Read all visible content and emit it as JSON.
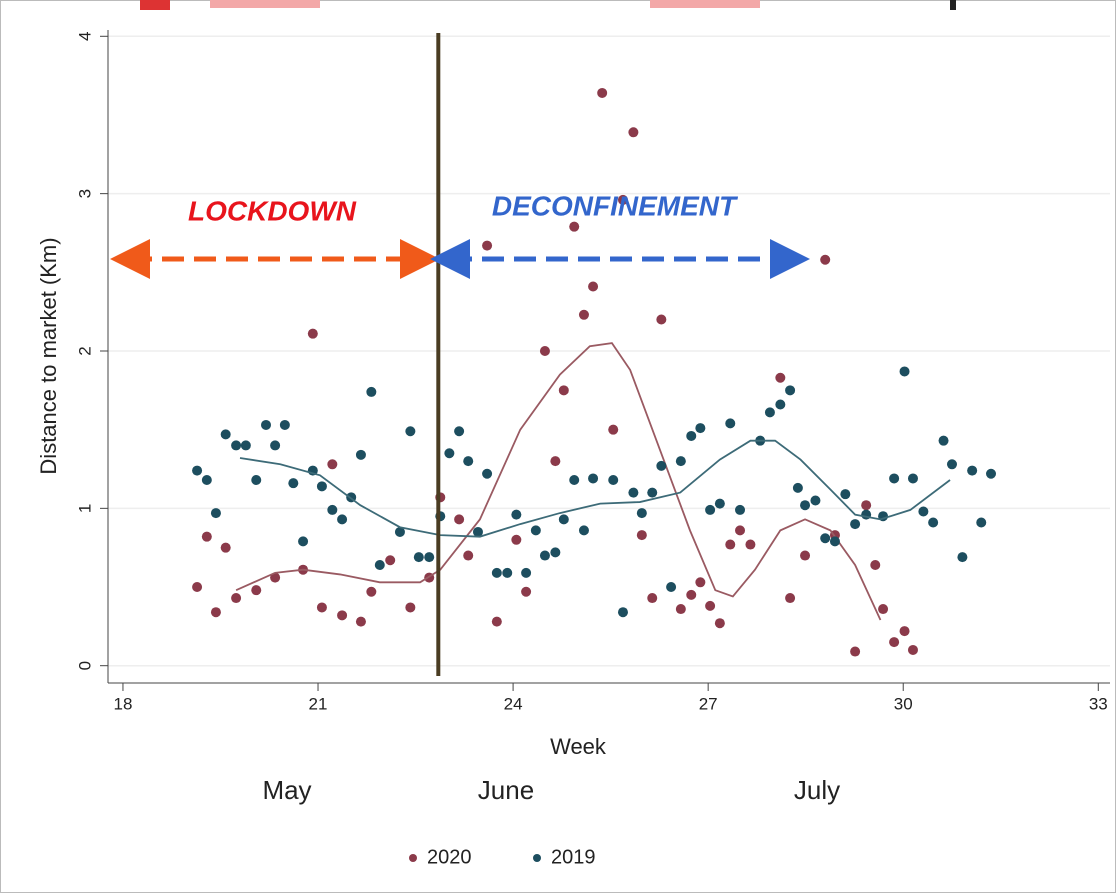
{
  "chart_data": {
    "type": "scatter",
    "xlabel": "Week",
    "ylabel": "Distance to market (Km)",
    "xlim": [
      17.77,
      33.18
    ],
    "ylim": [
      -0.11,
      4.04
    ],
    "xticks": [
      18,
      21,
      24,
      27,
      30,
      33
    ],
    "yticks": [
      0,
      1,
      2,
      3,
      4
    ],
    "grid": true,
    "months": [
      "May",
      "June",
      "July"
    ],
    "annotations": [
      "LOCKDOWN",
      "DECONFINEMENT"
    ],
    "vline": 22.85,
    "series": [
      {
        "name": "2020",
        "color": "#8b3a4a",
        "x": [
          19.14,
          19.29,
          19.43,
          19.58,
          19.74,
          20.05,
          20.34,
          20.92,
          20.77,
          21.06,
          21.22,
          21.37,
          21.66,
          21.82,
          22.11,
          22.42,
          22.71,
          22.88,
          23.17,
          23.31,
          23.6,
          23.75,
          24.05,
          24.2,
          24.49,
          24.65,
          24.78,
          24.94,
          25.09,
          25.23,
          25.37,
          25.54,
          25.69,
          25.85,
          25.98,
          26.14,
          26.28,
          26.58,
          26.74,
          26.88,
          27.03,
          27.18,
          27.34,
          27.49,
          27.65,
          28.11,
          28.26,
          28.49,
          28.8,
          28.95,
          29.26,
          29.43,
          29.57,
          29.69,
          29.86,
          30.02,
          30.15
        ],
        "values": [
          0.5,
          0.82,
          0.34,
          0.75,
          0.43,
          0.48,
          0.56,
          2.11,
          0.61,
          0.37,
          1.28,
          0.32,
          0.28,
          0.47,
          0.67,
          0.37,
          0.56,
          1.07,
          0.93,
          0.7,
          2.67,
          0.28,
          0.8,
          0.47,
          2.0,
          1.3,
          1.75,
          2.79,
          2.23,
          2.41,
          3.64,
          1.5,
          2.96,
          3.39,
          0.83,
          0.43,
          2.2,
          0.36,
          0.45,
          0.53,
          0.38,
          0.27,
          0.77,
          0.86,
          0.77,
          1.83,
          0.43,
          0.7,
          2.58,
          0.83,
          0.09,
          1.02,
          0.64,
          0.36,
          0.15,
          0.22,
          0.1
        ],
        "fit_x": [
          19.74,
          20.34,
          20.77,
          21.34,
          21.95,
          22.57,
          22.88,
          23.49,
          24.11,
          24.72,
          25.18,
          25.52,
          25.8,
          26.26,
          26.72,
          27.11,
          27.38,
          27.72,
          28.11,
          28.49,
          28.88,
          29.26,
          29.65
        ],
        "fit_values": [
          0.48,
          0.59,
          0.61,
          0.58,
          0.53,
          0.53,
          0.61,
          0.93,
          1.5,
          1.85,
          2.03,
          2.05,
          1.88,
          1.37,
          0.86,
          0.48,
          0.44,
          0.61,
          0.86,
          0.93,
          0.86,
          0.64,
          0.29
        ],
        "fit_color": "#9a5a62"
      },
      {
        "name": "2019",
        "color": "#1d4e5f",
        "x": [
          19.14,
          19.29,
          19.43,
          19.58,
          19.74,
          19.89,
          20.05,
          20.2,
          20.34,
          20.49,
          20.62,
          20.77,
          20.92,
          21.06,
          21.22,
          21.37,
          21.51,
          21.66,
          21.82,
          21.95,
          22.26,
          22.42,
          22.55,
          22.71,
          22.88,
          23.02,
          23.17,
          23.31,
          23.46,
          23.6,
          23.75,
          23.91,
          24.05,
          24.2,
          24.35,
          24.49,
          24.65,
          24.78,
          24.94,
          25.09,
          25.23,
          25.54,
          25.69,
          25.85,
          25.98,
          26.14,
          26.28,
          26.43,
          26.58,
          26.74,
          26.88,
          27.03,
          27.18,
          27.34,
          27.49,
          27.8,
          27.95,
          28.11,
          28.26,
          28.38,
          28.49,
          28.65,
          28.8,
          28.95,
          29.11,
          29.26,
          29.43,
          29.69,
          29.86,
          30.02,
          30.15,
          30.31,
          30.46,
          30.62,
          30.75,
          30.91,
          31.06,
          31.2,
          31.35
        ],
        "values": [
          1.24,
          1.18,
          0.97,
          1.47,
          1.4,
          1.4,
          1.18,
          1.53,
          1.4,
          1.53,
          1.16,
          0.79,
          1.24,
          1.14,
          0.99,
          0.93,
          1.07,
          1.34,
          1.74,
          0.64,
          0.85,
          1.49,
          0.69,
          0.69,
          0.95,
          1.35,
          1.49,
          1.3,
          0.85,
          1.22,
          0.59,
          0.59,
          0.96,
          0.59,
          0.86,
          0.7,
          0.72,
          0.93,
          1.18,
          0.86,
          1.19,
          1.18,
          0.34,
          1.1,
          0.97,
          1.1,
          1.27,
          0.5,
          1.3,
          1.46,
          1.51,
          0.99,
          1.03,
          1.54,
          0.99,
          1.43,
          1.61,
          1.66,
          1.75,
          1.13,
          1.02,
          1.05,
          0.81,
          0.79,
          1.09,
          0.9,
          0.96,
          0.95,
          1.19,
          1.87,
          1.19,
          0.98,
          0.91,
          1.43,
          1.28,
          0.69,
          1.24,
          0.91,
          1.22
        ],
        "fit_x": [
          19.8,
          20.42,
          21.03,
          21.65,
          22.26,
          22.88,
          23.49,
          24.11,
          24.72,
          25.34,
          25.95,
          26.57,
          27.18,
          27.65,
          28.03,
          28.42,
          28.88,
          29.26,
          29.65,
          30.11,
          30.72
        ],
        "fit_values": [
          1.32,
          1.28,
          1.21,
          1.02,
          0.88,
          0.83,
          0.82,
          0.9,
          0.97,
          1.03,
          1.04,
          1.1,
          1.31,
          1.43,
          1.43,
          1.31,
          1.12,
          0.96,
          0.93,
          0.99,
          1.18
        ],
        "fit_color": "#3d6b78"
      }
    ]
  }
}
